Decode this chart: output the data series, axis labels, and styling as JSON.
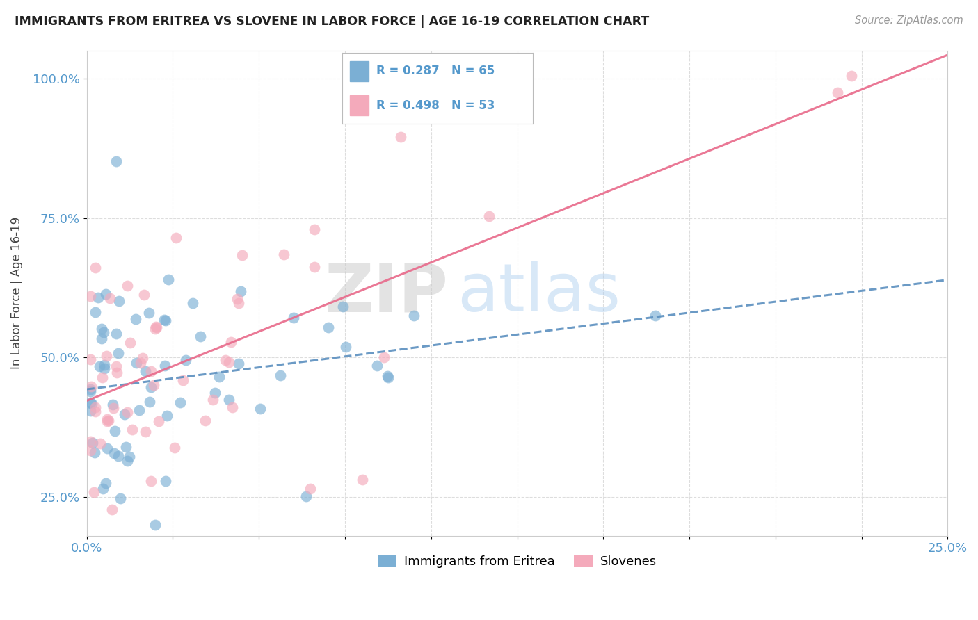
{
  "title": "IMMIGRANTS FROM ERITREA VS SLOVENE IN LABOR FORCE | AGE 16-19 CORRELATION CHART",
  "source": "Source: ZipAtlas.com",
  "ylabel": "In Labor Force | Age 16-19",
  "legend_label1": "Immigrants from Eritrea",
  "legend_label2": "Slovenes",
  "r1": 0.287,
  "n1": 65,
  "r2": 0.498,
  "n2": 53,
  "xlim": [
    0.0,
    0.25
  ],
  "ylim": [
    0.18,
    1.05
  ],
  "ytick_vals": [
    0.25,
    0.5,
    0.75,
    1.0
  ],
  "ytick_labels": [
    "25.0%",
    "50.0%",
    "75.0%",
    "100.0%"
  ],
  "xtick_vals": [
    0.0,
    0.025,
    0.05,
    0.075,
    0.1,
    0.125,
    0.15,
    0.175,
    0.2,
    0.225,
    0.25
  ],
  "xtick_labels": [
    "0.0%",
    "",
    "",
    "",
    "",
    "",
    "",
    "",
    "",
    "",
    "25.0%"
  ],
  "color1": "#7BAFD4",
  "color2": "#F4AABB",
  "trend1_color": "#5B8FBF",
  "trend2_color": "#E8698A",
  "background": "#FFFFFF",
  "grid_color": "#DDDDDD",
  "tick_color": "#5599CC",
  "title_color": "#222222",
  "source_color": "#999999",
  "ylabel_color": "#444444"
}
